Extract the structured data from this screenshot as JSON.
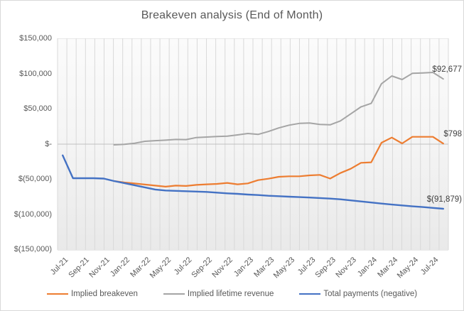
{
  "chart_data": {
    "type": "line",
    "title": "Breakeven analysis (End of Month)",
    "ylim": [
      -150000,
      150000
    ],
    "grid": {
      "vertical_lines": 43,
      "zero_line": true
    },
    "legend_position": "bottom",
    "y_ticks": [
      {
        "label": "$150,000",
        "value": 150000
      },
      {
        "label": "$100,000",
        "value": 100000
      },
      {
        "label": "$50,000",
        "value": 50000
      },
      {
        "label": "$-",
        "value": 0
      },
      {
        "label": "$(50,000)",
        "value": -50000
      },
      {
        "label": "$(100,000)",
        "value": -100000
      },
      {
        "label": "$(150,000)",
        "value": -150000
      }
    ],
    "x_label_interval": 2,
    "categories": [
      "Jul-21",
      "Aug-21",
      "Sep-21",
      "Oct-21",
      "Nov-21",
      "Dec-21",
      "Jan-22",
      "Feb-22",
      "Mar-22",
      "Apr-22",
      "May-22",
      "Jun-22",
      "Jul-22",
      "Aug-22",
      "Sep-22",
      "Oct-22",
      "Nov-22",
      "Dec-22",
      "Jan-23",
      "Feb-23",
      "Mar-23",
      "Apr-23",
      "May-23",
      "Jun-23",
      "Jul-23",
      "Aug-23",
      "Sep-23",
      "Oct-23",
      "Nov-23",
      "Dec-23",
      "Jan-24",
      "Feb-24",
      "Mar-24",
      "Apr-24",
      "May-24",
      "Jun-24",
      "Jul-24",
      "Aug-24"
    ],
    "series": [
      {
        "name": "Implied breakeven",
        "color": "#ED7D31",
        "end_label": "$798",
        "values": [
          null,
          null,
          null,
          null,
          null,
          -52500,
          -54500,
          -56000,
          -57500,
          -59000,
          -60500,
          -59000,
          -59500,
          -58000,
          -57200,
          -56600,
          -55200,
          -57200,
          -55900,
          -51200,
          -49200,
          -46500,
          -45800,
          -45800,
          -44400,
          -43700,
          -49000,
          -41100,
          -35000,
          -26600,
          -25900,
          2000,
          9400,
          1000,
          10400,
          10400,
          10400,
          798
        ]
      },
      {
        "name": "Implied lifetime revenue",
        "color": "#A5A5A5",
        "end_label": "$92,677",
        "values": [
          null,
          null,
          null,
          null,
          null,
          -1000,
          -300,
          1300,
          4000,
          5000,
          5700,
          6700,
          6500,
          9400,
          10100,
          10800,
          11400,
          13100,
          15200,
          13800,
          18000,
          23000,
          27000,
          29500,
          30000,
          28000,
          27500,
          33000,
          43000,
          53000,
          58000,
          86000,
          97000,
          91900,
          100700,
          101300,
          102000,
          92677
        ]
      },
      {
        "name": "Total payments (negative)",
        "color": "#4472C4",
        "end_label": "$(91,879)",
        "values": [
          -16000,
          -48500,
          -48500,
          -48500,
          -49000,
          -52500,
          -55500,
          -58500,
          -61500,
          -64500,
          -66000,
          -66500,
          -67000,
          -67500,
          -68000,
          -69000,
          -70000,
          -70700,
          -71700,
          -72400,
          -73400,
          -74000,
          -74700,
          -75400,
          -76000,
          -76700,
          -77500,
          -78500,
          -80000,
          -81500,
          -83000,
          -84500,
          -86000,
          -87200,
          -88500,
          -89500,
          -90700,
          -91879
        ]
      }
    ],
    "colors": {
      "axis_text": "#595959",
      "gridline": "#d9d9d9",
      "zero_line": "#bfbfbf",
      "data_label": "#404040"
    }
  }
}
